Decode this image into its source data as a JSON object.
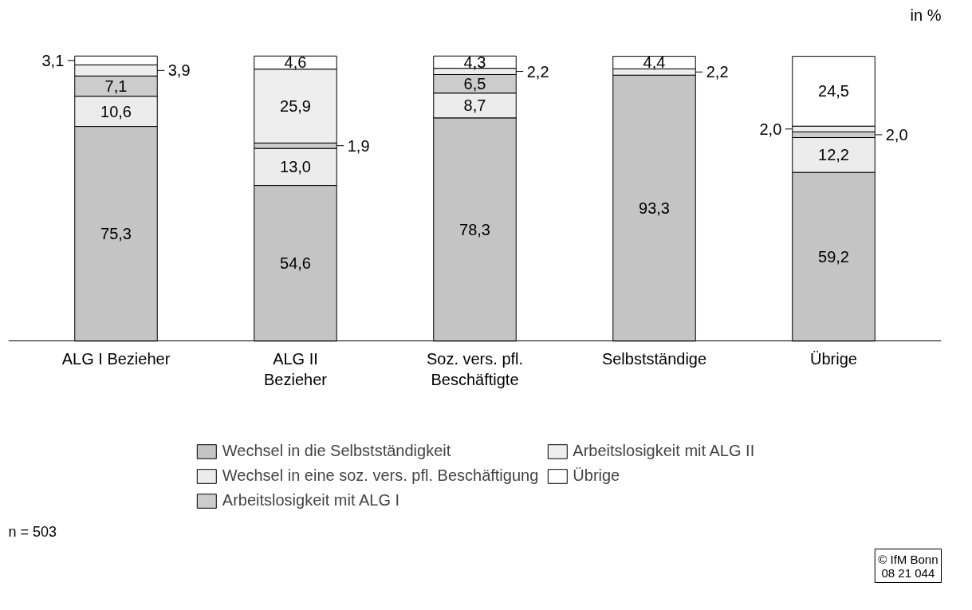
{
  "chart_data": {
    "type": "bar",
    "stacked": true,
    "categories": [
      "ALG I Bezieher",
      "ALG II\nBezieher",
      "Soz. vers. pfl.\nBeschäftigte",
      "Selbstständige",
      "Übrige"
    ],
    "series": [
      {
        "name": "Wechsel in die Selbstständigkeit",
        "color": "#c4c4c4",
        "values": [
          75.3,
          54.6,
          78.3,
          93.3,
          59.2
        ],
        "value_labels": [
          "75,3",
          "54,6",
          "78,3",
          "93,3",
          "59,2"
        ]
      },
      {
        "name": "Wechsel in eine soz. vers. pfl. Beschäftigung",
        "color": "#ececec",
        "values": [
          10.6,
          13.0,
          8.7,
          null,
          12.2
        ],
        "value_labels": [
          "10,6",
          "13,0",
          "8,7",
          null,
          "12,2"
        ]
      },
      {
        "name": "Arbeitslosigkeit mit ALG I",
        "color": "#cccccc",
        "values": [
          7.1,
          1.9,
          6.5,
          null,
          2.0
        ],
        "value_labels": [
          "7,1",
          "1,9",
          "6,5",
          null,
          "2,0"
        ]
      },
      {
        "name": "Arbeitslosigkeit mit ALG II",
        "color": "#eeeeee",
        "values": [
          3.9,
          25.9,
          2.2,
          2.2,
          2.0
        ],
        "value_labels": [
          "3,9",
          "25,9",
          "2,2",
          "2,2",
          "2,0"
        ]
      },
      {
        "name": "Übrige",
        "color": "#ffffff",
        "values": [
          3.1,
          4.6,
          4.3,
          4.4,
          24.5
        ],
        "value_labels": [
          "3,1",
          "4,6",
          "4,3",
          "4,4",
          "24,5"
        ]
      }
    ],
    "legend": "bottom",
    "annotations": [
      "in %",
      "n = 503",
      "© IfM Bonn\n08 21 044"
    ]
  }
}
